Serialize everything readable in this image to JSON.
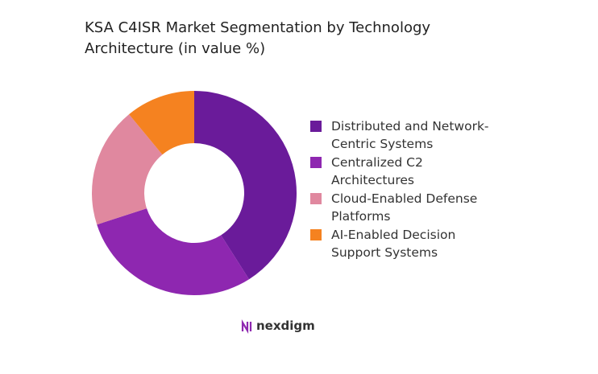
{
  "chart_data": {
    "type": "donut",
    "title": "KSA C4ISR Market Segmentation by Technology Architecture (in value %)",
    "categories": [
      "Distributed and Network-Centric Systems",
      "Centralized C2 Architectures",
      "Cloud-Enabled Defense Platforms",
      "AI-Enabled Decision Support Systems"
    ],
    "values": [
      41,
      29,
      19,
      11
    ],
    "colors": [
      "#6a1b9a",
      "#8e27b0",
      "#e0889f",
      "#f58220"
    ],
    "legend": "right"
  },
  "brand": "nexdigm"
}
